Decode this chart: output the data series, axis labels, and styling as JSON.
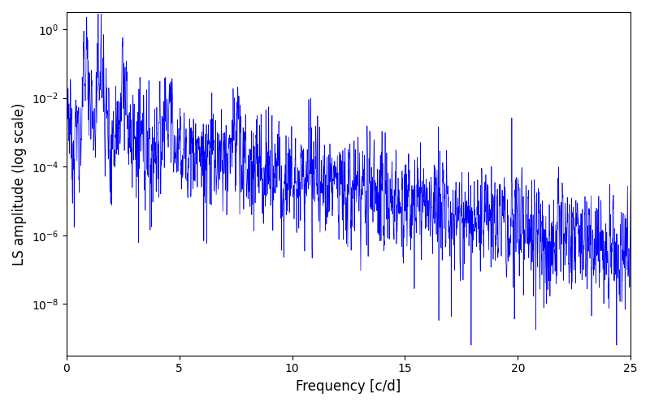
{
  "title": "",
  "xlabel": "Frequency [c/d]",
  "ylabel": "LS amplitude (log scale)",
  "xlim": [
    0,
    25
  ],
  "ylim_log": [
    -9.5,
    0.5
  ],
  "line_color": "#0000ff",
  "line_width": 0.5,
  "background_color": "#ffffff",
  "figsize": [
    8.0,
    5.0
  ],
  "dpi": 100,
  "seed": 12345,
  "n_points": 3000,
  "freq_max": 25.0,
  "yticks": [
    1e-08,
    1e-06,
    0.0001,
    0.01,
    1.0
  ]
}
